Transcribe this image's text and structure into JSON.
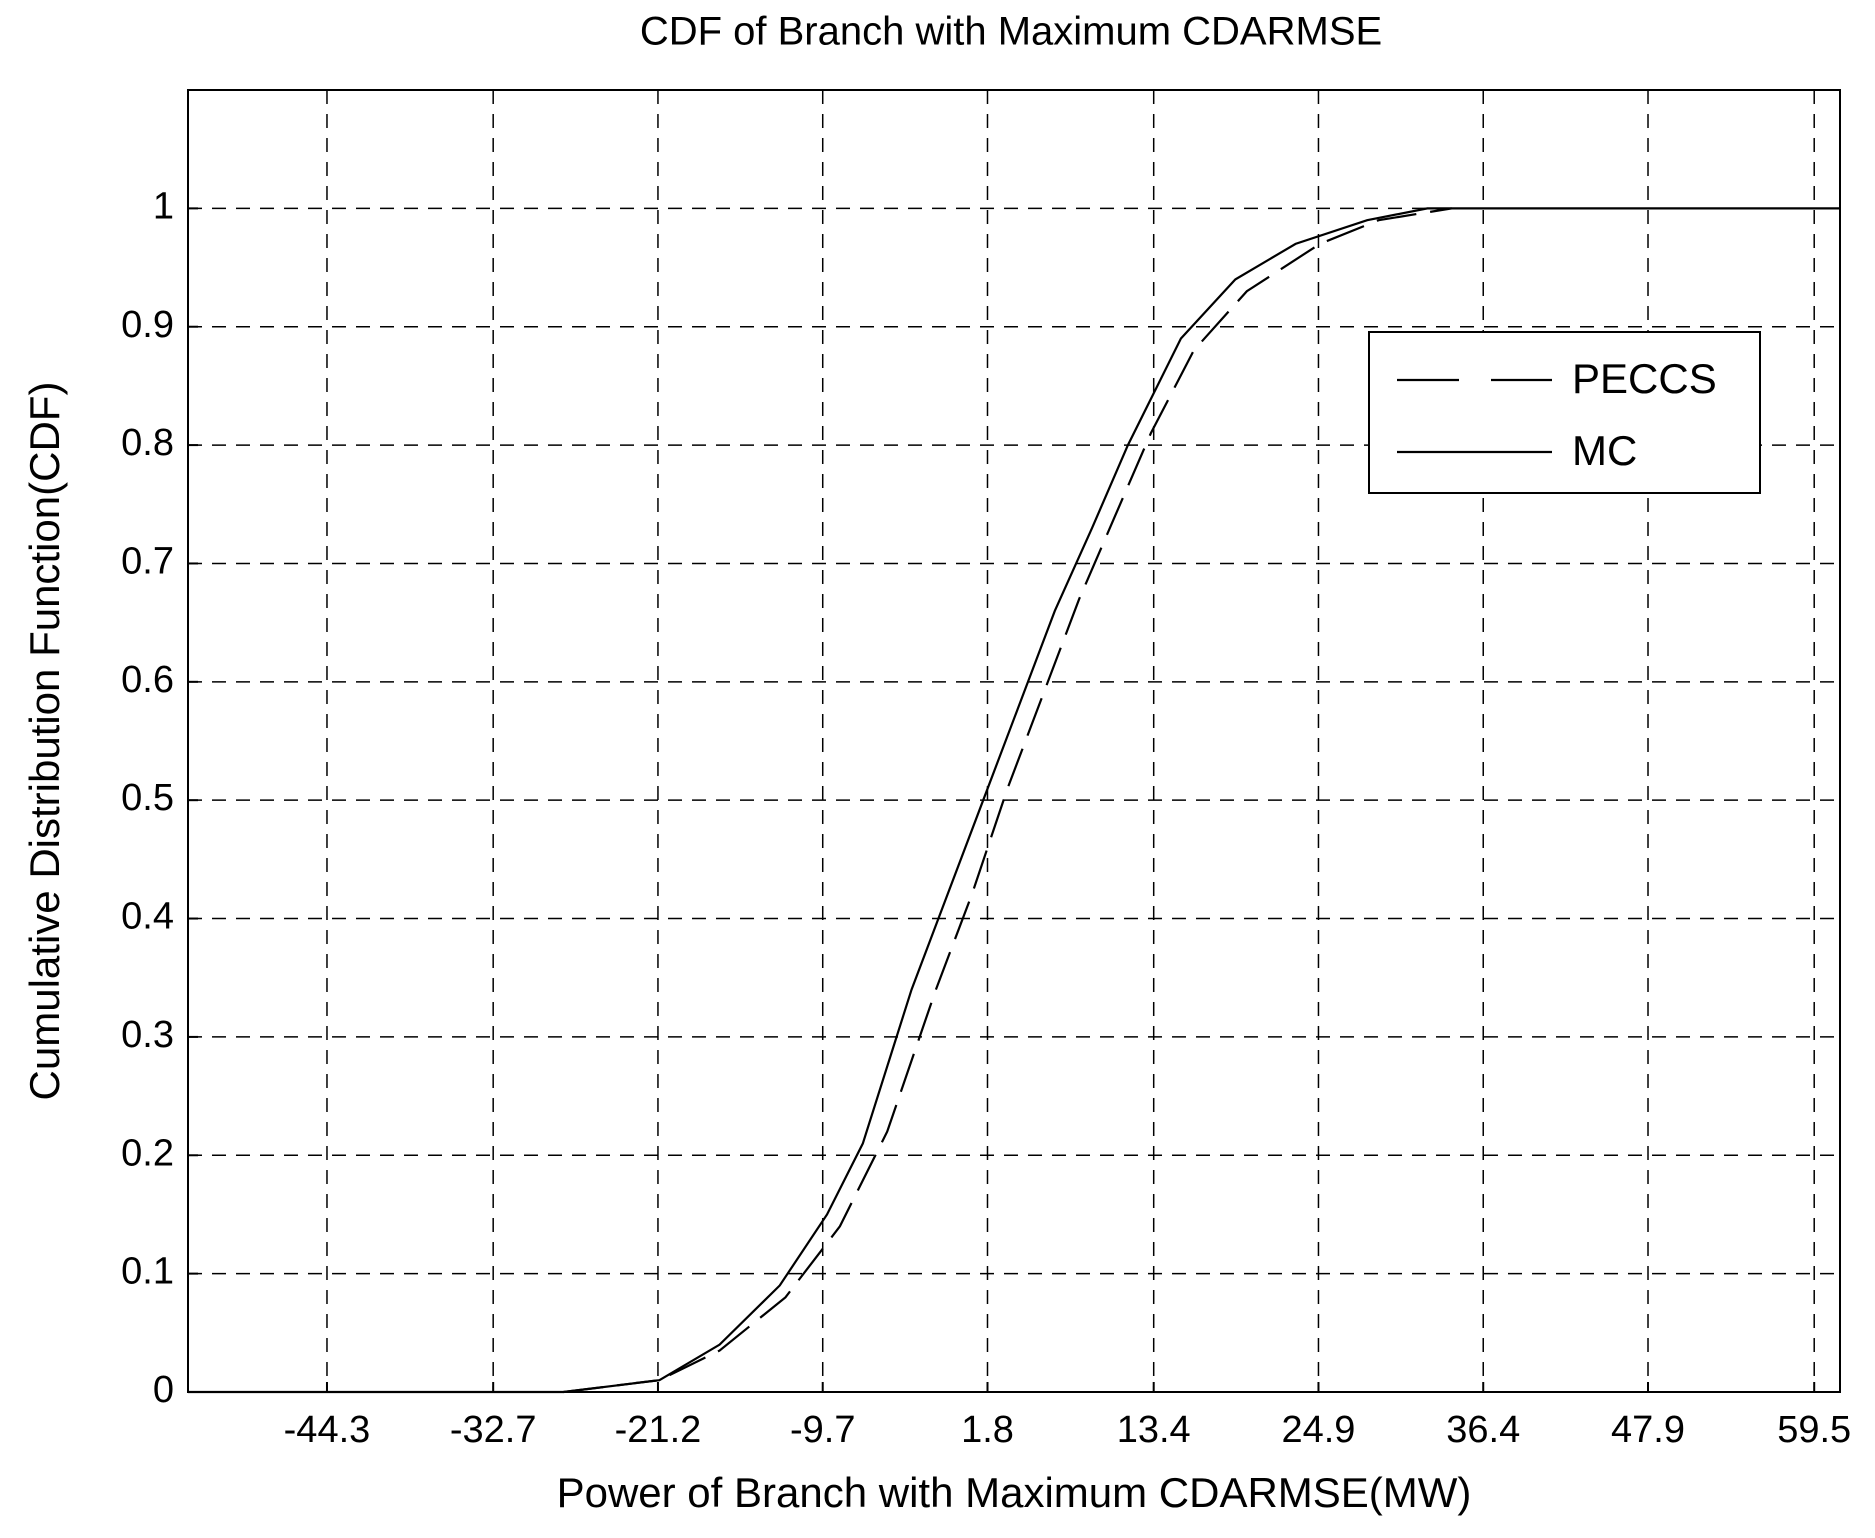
{
  "chart_data": {
    "type": "line",
    "title": "CDF of Branch with Maximum CDARMSE",
    "x_label": "Power of Branch with Maximum CDARMSE(MW)",
    "y_label": "Cumulative Distribution Function(CDF)",
    "xlim": [
      -54.0,
      61.3
    ],
    "ylim": [
      0,
      1.1
    ],
    "xticks": [
      -44.3,
      -32.7,
      -21.2,
      -9.7,
      1.8,
      13.4,
      24.9,
      36.4,
      47.9,
      59.5
    ],
    "yticks": [
      0,
      0.1,
      0.2,
      0.3,
      0.4,
      0.5,
      0.6,
      0.7,
      0.8,
      0.9,
      1
    ],
    "grid": true,
    "legend": "upper right",
    "series": [
      {
        "name": "PECCS",
        "color": "#000000",
        "dashed": true,
        "x": [
          -27.8,
          -21.1,
          -16.9,
          -12.3,
          -8.5,
          -5.2,
          -1.8,
          0.7,
          3.2,
          5.7,
          8.2,
          10.7,
          13.2,
          16.2,
          19.9,
          25.0,
          29.1,
          34.2
        ],
        "values": [
          0,
          0.01,
          0.035,
          0.08,
          0.14,
          0.22,
          0.34,
          0.42,
          0.51,
          0.59,
          0.67,
          0.74,
          0.81,
          0.88,
          0.93,
          0.97,
          0.99,
          1.0
        ]
      },
      {
        "name": "MC",
        "color": "#000000",
        "dashed": false,
        "x": [
          -54.0,
          -27.8,
          -21.1,
          -16.9,
          -12.7,
          -9.4,
          -6.9,
          -3.5,
          -1.0,
          1.5,
          4.0,
          6.5,
          9.1,
          11.6,
          15.3,
          19.1,
          23.3,
          28.3,
          32.5,
          61.3
        ],
        "values": [
          0,
          0,
          0.01,
          0.04,
          0.09,
          0.15,
          0.21,
          0.34,
          0.42,
          0.5,
          0.58,
          0.66,
          0.73,
          0.8,
          0.89,
          0.94,
          0.97,
          0.99,
          1.0,
          1.0
        ]
      }
    ]
  }
}
